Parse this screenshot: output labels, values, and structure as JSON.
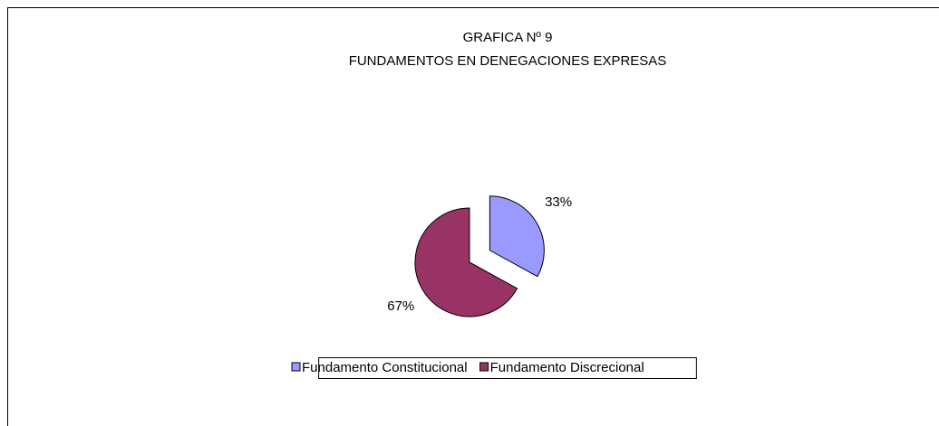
{
  "chart_data": {
    "type": "pie",
    "title": "GRAFICA Nº 9",
    "subtitle": "FUNDAMENTOS EN DENEGACIONES EXPRESAS",
    "categories": [
      "Fundamento Constitucional",
      "Fundamento Discrecional"
    ],
    "values": [
      33,
      67
    ],
    "value_labels": [
      "33%",
      "67%"
    ],
    "colors": [
      "#9999ff",
      "#993366"
    ],
    "legend": "bottom"
  }
}
